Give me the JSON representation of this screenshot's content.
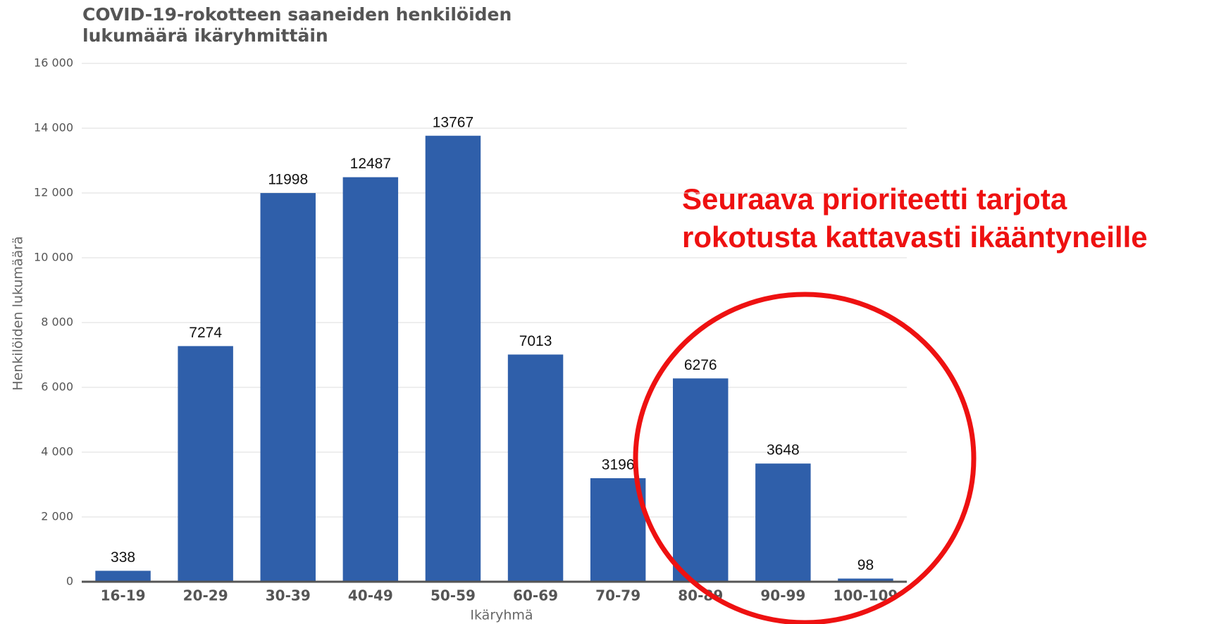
{
  "chart_data": {
    "type": "bar",
    "title": [
      "COVID-19-rokotteen saaneiden henkilöiden",
      "lukumäärä ikäryhmittäin"
    ],
    "x_label": "Ikäryhmä",
    "y_label": "Henkilöiden lukumäärä",
    "categories": [
      "16-19",
      "20-29",
      "30-39",
      "40-49",
      "50-59",
      "60-69",
      "70-79",
      "80-89",
      "90-99",
      "100-109"
    ],
    "values": [
      338,
      7274,
      11998,
      12487,
      13767,
      7013,
      3196,
      6276,
      3648,
      98
    ],
    "color": "#2f5faa",
    "ylim": [
      0,
      16000
    ],
    "yticks": [
      0,
      {
        "value": 2000,
        "label": "2 000"
      },
      {
        "value": 4000,
        "label": "4 000"
      },
      {
        "value": 6000,
        "label": "6 000"
      },
      {
        "value": 8000,
        "label": "8 000"
      },
      {
        "value": 10000,
        "label": "10 000"
      },
      {
        "value": 12000,
        "label": "12 000"
      },
      {
        "value": 14000,
        "label": "14 000"
      },
      {
        "value": 16000,
        "label": "16 000"
      }
    ],
    "grid": true,
    "annotation": [
      "Seuraava prioriteetti tarjota",
      "rokotusta kattavasti ikääntyneille"
    ]
  }
}
